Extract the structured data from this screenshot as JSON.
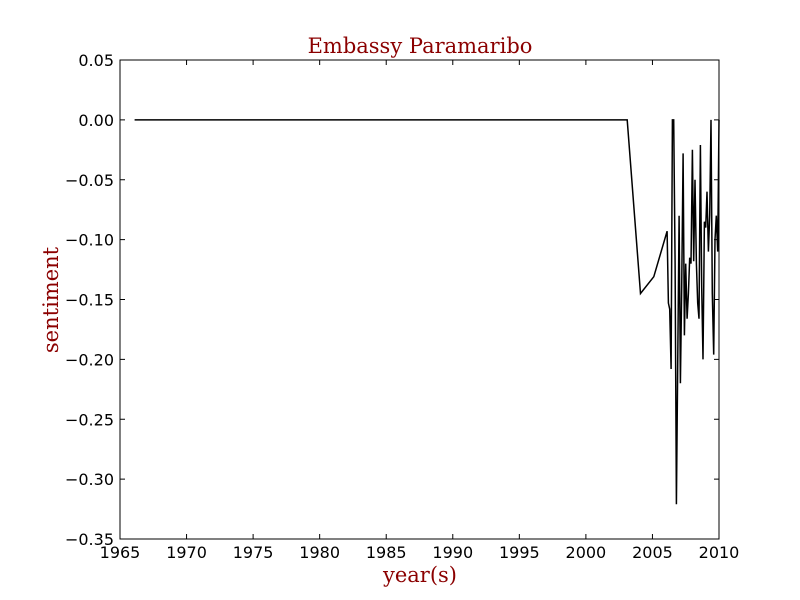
{
  "colors": {
    "title": "#8b0000",
    "line": "#000000",
    "axes": "#000000",
    "background": "#ffffff"
  },
  "chart_data": {
    "type": "line",
    "title": "Embassy Paramaribo",
    "xlabel": "year(s)",
    "ylabel": "sentiment",
    "xlim": [
      1965,
      2010
    ],
    "ylim": [
      -0.35,
      0.05
    ],
    "grid": false,
    "legend": "none",
    "x_ticks": [
      1965,
      1970,
      1975,
      1980,
      1985,
      1990,
      1995,
      2000,
      2005,
      2010
    ],
    "x_tick_labels": [
      "1965",
      "1970",
      "1975",
      "1980",
      "1985",
      "1990",
      "1995",
      "2000",
      "2005",
      "2010"
    ],
    "y_ticks": [
      0.05,
      0.0,
      -0.05,
      -0.1,
      -0.15,
      -0.2,
      -0.25,
      -0.3,
      -0.35
    ],
    "y_tick_labels": [
      "0.05",
      "0.00",
      "−0.05",
      "−0.10",
      "−0.15",
      "−0.20",
      "−0.25",
      "−0.30",
      "−0.35"
    ],
    "series": [
      {
        "color": "#000000",
        "x": [
          1966.1,
          2003.1,
          2004.1,
          2005.1,
          2006.1,
          2006.2,
          2006.3,
          2006.4,
          2006.5,
          2006.6,
          2006.7,
          2006.8,
          2007.0,
          2007.1,
          2007.2,
          2007.3,
          2007.4,
          2007.5,
          2007.6,
          2007.7,
          2007.8,
          2007.9,
          2008.0,
          2008.1,
          2008.2,
          2008.3,
          2008.4,
          2008.5,
          2008.6,
          2008.7,
          2008.8,
          2008.9,
          2009.0,
          2009.1,
          2009.2,
          2009.3,
          2009.4,
          2009.5,
          2009.6,
          2009.7,
          2009.8,
          2009.9,
          2010.0
        ],
        "y": [
          0.0,
          0.0,
          -0.145,
          -0.131,
          -0.093,
          -0.153,
          -0.158,
          -0.208,
          0.0,
          0.0,
          -0.12,
          -0.321,
          -0.08,
          -0.22,
          -0.14,
          -0.028,
          -0.18,
          -0.12,
          -0.166,
          -0.145,
          -0.115,
          -0.12,
          -0.025,
          -0.118,
          -0.05,
          -0.12,
          -0.153,
          -0.166,
          -0.021,
          -0.14,
          -0.2,
          -0.085,
          -0.09,
          -0.06,
          -0.11,
          -0.08,
          0.0,
          -0.145,
          -0.196,
          -0.1,
          -0.08,
          -0.11,
          0.0
        ]
      }
    ]
  }
}
